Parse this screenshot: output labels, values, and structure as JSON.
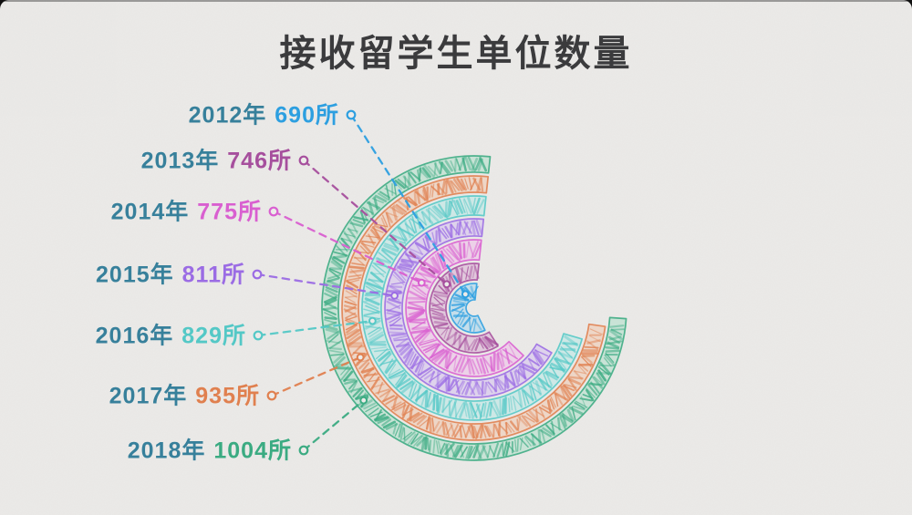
{
  "page": {
    "title": "接收留学生单位数量",
    "title_color": "#3B3B3D",
    "background_color": "#ECEBE9",
    "year_label_color": "#37809B",
    "style": "hand-drawn crayon scribble on paper"
  },
  "chart_data": {
    "type": "bar",
    "subtype": "radial_bar",
    "title": "接收留学生单位数量",
    "unit": "所",
    "categories": [
      "2012年",
      "2013年",
      "2014年",
      "2015年",
      "2016年",
      "2017年",
      "2018年"
    ],
    "values": [
      690,
      746,
      775,
      811,
      829,
      935,
      1004
    ],
    "series": [
      {
        "year_label": "2012年",
        "value": 690,
        "value_label": "690所",
        "color": "#2D9FE0",
        "tint": "#9FD3EF",
        "sweep_deg": 212
      },
      {
        "year_label": "2013年",
        "value": 746,
        "value_label": "746所",
        "color": "#A64F9D",
        "tint": "#D8A9D1",
        "sweep_deg": 218
      },
      {
        "year_label": "2014年",
        "value": 775,
        "value_label": "775所",
        "color": "#D95FD0",
        "tint": "#EFB9EA",
        "sweep_deg": 232
      },
      {
        "year_label": "2015年",
        "value": 811,
        "value_label": "811所",
        "color": "#9B6CE4",
        "tint": "#D2BCF2",
        "sweep_deg": 246
      },
      {
        "year_label": "2016年",
        "value": 829,
        "value_label": "829所",
        "color": "#54C8C6",
        "tint": "#B2E8E6",
        "sweep_deg": 260
      },
      {
        "year_label": "2017年",
        "value": 935,
        "value_label": "935所",
        "color": "#E0804F",
        "tint": "#F2C3A8",
        "sweep_deg": 268
      },
      {
        "year_label": "2018年",
        "value": 1004,
        "value_label": "1004所",
        "color": "#3BAB82",
        "tint": "#A7DEC6",
        "sweep_deg": 272
      }
    ],
    "layout_hints": {
      "start_angle_deg_math": 84,
      "direction": "counterclockwise",
      "gap_side": "right",
      "ring_order": "inner-to-outer equals 2012-to-2018",
      "legend_position": "left, one dashed leader line per ring with hollow dots at both ends",
      "grid": false
    }
  }
}
